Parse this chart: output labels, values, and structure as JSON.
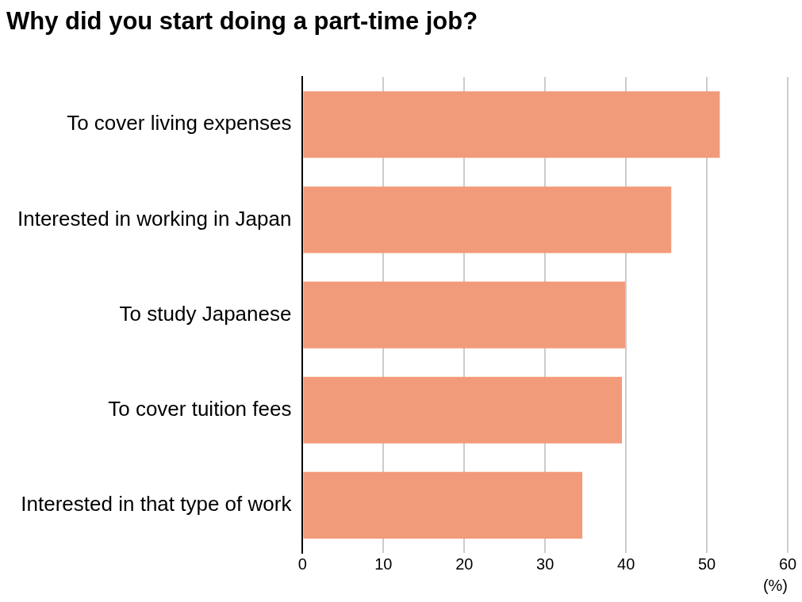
{
  "chart_data": {
    "type": "bar",
    "orientation": "horizontal",
    "title": "Why did you start doing a part-time job?",
    "xlabel": "(%)",
    "categories": [
      "To cover living expenses",
      "Interested in working in Japan",
      "To study Japanese",
      "To cover tuition fees",
      "Interested in that type of work"
    ],
    "values": [
      51.6,
      45.6,
      39.9,
      39.5,
      34.6
    ],
    "color": "#f29b7a",
    "xlim": [
      0,
      60
    ],
    "xticks": [
      0,
      10,
      20,
      30,
      40,
      50,
      60
    ],
    "grid": "x"
  }
}
